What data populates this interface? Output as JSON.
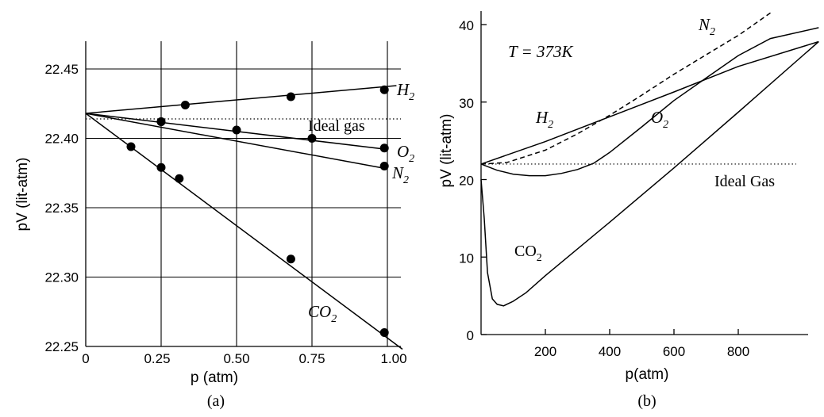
{
  "chart_data": [
    {
      "type": "line",
      "caption": "(a)",
      "xlabel": "p (atm)",
      "ylabel": "pV (lit-atm)",
      "xlim": [
        0,
        1.05
      ],
      "ylim": [
        22.25,
        22.48
      ],
      "grid": true,
      "x_ticks": [
        "0",
        "0.25",
        "0.50",
        "0.75",
        "1.00"
      ],
      "x_tick_values": [
        0,
        0.25,
        0.5,
        0.75,
        1.0
      ],
      "y_ticks": [
        "22.25",
        "22.30",
        "22.35",
        "22.40",
        "22.45"
      ],
      "y_tick_values": [
        22.25,
        22.3,
        22.35,
        22.4,
        22.45
      ],
      "ideal_label": "Ideal gas",
      "ideal_value": 22.414,
      "series": [
        {
          "name": "H",
          "sub": "2",
          "italic": true,
          "line": [
            [
              0,
              22.418
            ],
            [
              1.03,
              22.438
            ]
          ],
          "points": [
            [
              0.33,
              22.424
            ],
            [
              0.68,
              22.43
            ],
            [
              0.99,
              22.435
            ]
          ]
        },
        {
          "name": "O",
          "sub": "2",
          "italic": true,
          "line": [
            [
              0,
              22.418
            ],
            [
              1.0,
              22.392
            ]
          ],
          "points": [
            [
              0.25,
              22.412
            ],
            [
              0.5,
              22.406
            ],
            [
              0.75,
              22.4
            ],
            [
              0.99,
              22.393
            ]
          ]
        },
        {
          "name": "N",
          "sub": "2",
          "italic": true,
          "line": [
            [
              0,
              22.418
            ],
            [
              1.0,
              22.378
            ]
          ],
          "points": [
            [
              0.25,
              22.412
            ],
            [
              0.99,
              22.38
            ]
          ]
        },
        {
          "name": "CO",
          "sub": "2",
          "italic": true,
          "line": [
            [
              0,
              22.418
            ],
            [
              1.05,
              22.248
            ]
          ],
          "points": [
            [
              0.15,
              22.394
            ],
            [
              0.25,
              22.379
            ],
            [
              0.31,
              22.371
            ],
            [
              0.68,
              22.313
            ],
            [
              0.99,
              22.26
            ]
          ]
        }
      ]
    },
    {
      "type": "line",
      "caption": "(b)",
      "xlabel": "p(atm)",
      "ylabel": "pV (lit-atm)",
      "annotation": "T = 373K",
      "xlim": [
        0,
        1050
      ],
      "ylim": [
        0,
        42
      ],
      "grid": false,
      "x_ticks": [
        "200",
        "400",
        "600",
        "800"
      ],
      "x_tick_values": [
        200,
        400,
        600,
        800
      ],
      "y_ticks": [
        "0",
        "10",
        "20",
        "30",
        "40"
      ],
      "y_tick_values": [
        0,
        10,
        20,
        30,
        40
      ],
      "ideal_label": "Ideal Gas",
      "ideal_value": 22,
      "series": [
        {
          "name": "H",
          "sub": "2",
          "italic": true,
          "style": "solid",
          "points": [
            [
              0,
              22
            ],
            [
              200,
              24.9
            ],
            [
              400,
              28.1
            ],
            [
              600,
              31.3
            ],
            [
              800,
              34.6
            ],
            [
              1050,
              37.8
            ]
          ]
        },
        {
          "name": "N",
          "sub": "2",
          "italic": true,
          "style": "dashed",
          "points": [
            [
              0,
              22
            ],
            [
              80,
              22.2
            ],
            [
              200,
              23.8
            ],
            [
              300,
              25.9
            ],
            [
              400,
              28.3
            ],
            [
              500,
              30.9
            ],
            [
              600,
              33.6
            ],
            [
              700,
              36.1
            ],
            [
              800,
              38.6
            ],
            [
              900,
              41.5
            ]
          ]
        },
        {
          "name": "O",
          "sub": "2",
          "italic": true,
          "style": "solid",
          "points": [
            [
              0,
              22
            ],
            [
              50,
              21.2
            ],
            [
              100,
              20.7
            ],
            [
              150,
              20.5
            ],
            [
              200,
              20.5
            ],
            [
              250,
              20.8
            ],
            [
              300,
              21.3
            ],
            [
              350,
              22.1
            ],
            [
              400,
              23.5
            ],
            [
              500,
              26.8
            ],
            [
              600,
              30.2
            ],
            [
              700,
              33.1
            ],
            [
              800,
              36.0
            ],
            [
              900,
              38.2
            ],
            [
              1050,
              39.6
            ]
          ]
        },
        {
          "name": "CO",
          "sub": "2",
          "italic": false,
          "style": "solid",
          "points": [
            [
              0,
              20
            ],
            [
              10,
              15
            ],
            [
              20,
              8
            ],
            [
              35,
              4.6
            ],
            [
              50,
              3.9
            ],
            [
              70,
              3.7
            ],
            [
              100,
              4.3
            ],
            [
              140,
              5.4
            ],
            [
              200,
              7.6
            ],
            [
              400,
              14.5
            ],
            [
              600,
              21.5
            ],
            [
              800,
              28.7
            ],
            [
              1050,
              37.8
            ]
          ]
        }
      ]
    }
  ]
}
